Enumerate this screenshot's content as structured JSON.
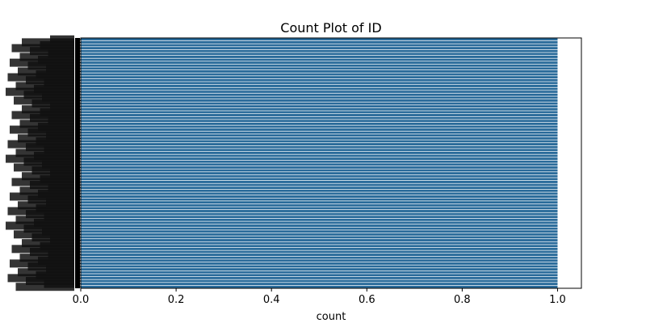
{
  "chart_data": {
    "type": "bar",
    "orientation": "horizontal",
    "title": "Count Plot of ID",
    "xlabel": "count",
    "ylabel": "",
    "xlim": [
      0,
      1.05
    ],
    "xticks": [
      "0.0",
      "0.2",
      "0.4",
      "0.6",
      "0.8",
      "1.0"
    ],
    "category_count": 86,
    "value_per_category": 1,
    "grid": false,
    "legend": "none",
    "bar_color": "#2a6b9a"
  }
}
